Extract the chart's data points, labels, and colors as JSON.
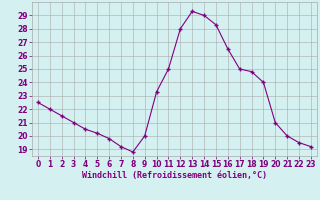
{
  "x": [
    0,
    1,
    2,
    3,
    4,
    5,
    6,
    7,
    8,
    9,
    10,
    11,
    12,
    13,
    14,
    15,
    16,
    17,
    18,
    19,
    20,
    21,
    22,
    23
  ],
  "y": [
    22.5,
    22.0,
    21.5,
    21.0,
    20.5,
    20.2,
    19.8,
    19.2,
    18.8,
    20.0,
    23.3,
    25.0,
    28.0,
    29.3,
    29.0,
    28.3,
    26.5,
    25.0,
    24.8,
    24.0,
    21.0,
    20.0,
    19.5,
    19.2
  ],
  "line_color": "#800080",
  "marker": "+",
  "markersize": 3.5,
  "markeredgewidth": 1.0,
  "linewidth": 0.8,
  "bg_color": "#d4f0f0",
  "grid_color": "#aaaaaa",
  "xlabel": "Windchill (Refroidissement éolien,°C)",
  "xlabel_color": "#800080",
  "xlabel_fontsize": 6.0,
  "tick_color": "#800080",
  "tick_fontsize": 5.5,
  "ylim": [
    18.5,
    30.0
  ],
  "xlim": [
    -0.5,
    23.5
  ],
  "yticks": [
    19,
    20,
    21,
    22,
    23,
    24,
    25,
    26,
    27,
    28,
    29
  ],
  "xticks": [
    0,
    1,
    2,
    3,
    4,
    5,
    6,
    7,
    8,
    9,
    10,
    11,
    12,
    13,
    14,
    15,
    16,
    17,
    18,
    19,
    20,
    21,
    22,
    23
  ]
}
